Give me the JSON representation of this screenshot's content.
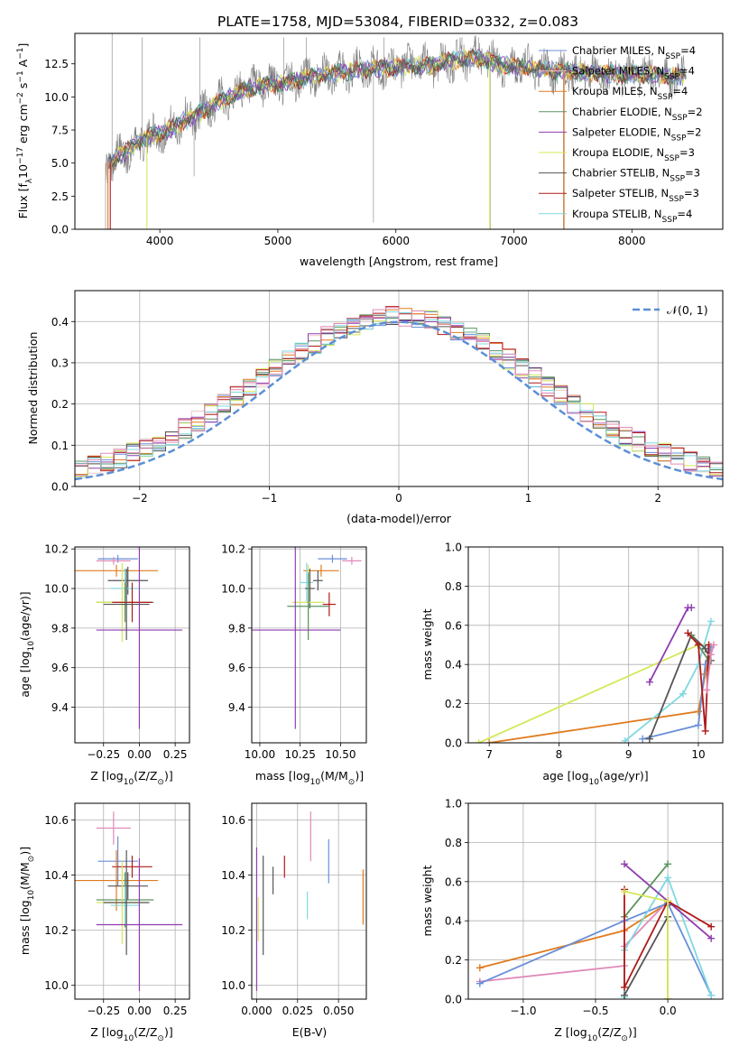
{
  "figure": {
    "title": "PLATE=1758, MJD=53084, FIBERID=0332, z=0.083",
    "colors": {
      "chabrier_miles": "#6a8fd8",
      "salpeter_miles": "#e8c8c8",
      "kroupa_miles": "#e07b1f",
      "chabrier_elodie": "#5a9460",
      "salpeter_elodie": "#8f3db0",
      "kroupa_elodie": "#d4e85a",
      "chabrier_stelib": "#555555",
      "salpeter_stelib": "#b01818",
      "kroupa_stelib": "#7fd8e0",
      "pink": "#e08ab8",
      "data": "#808080",
      "gaussian": "#5b8fd6"
    }
  },
  "chart_data": [
    {
      "id": "spectrum",
      "type": "line",
      "ylabel_main": "Flux [f",
      "ylabel_sub": "λ",
      "ylabel_rest": "10",
      "ylabel_exp1": "−17",
      "ylabel_mid": " erg cm",
      "ylabel_exp2": "−2",
      "ylabel_mid2": " s",
      "ylabel_exp3": "−1",
      "ylabel_end": " A",
      "ylabel_exp4": "−1",
      "ylabel_close": "]",
      "xlabel": "wavelength [Angstrom, rest frame]",
      "xlim": [
        3280,
        8770
      ],
      "ylim": [
        0,
        14.8
      ],
      "xticks": [
        4000,
        5000,
        6000,
        7000,
        8000
      ],
      "xtick_labels": [
        "4000",
        "5000",
        "6000",
        "7000",
        "8000"
      ],
      "yticks": [
        0,
        2.5,
        5.0,
        7.5,
        10.0,
        12.5
      ],
      "ytick_labels": [
        "0.0",
        "2.5",
        "5.0",
        "7.5",
        "10.0",
        "12.5"
      ],
      "continuum": {
        "x": [
          3560,
          3700,
          3850,
          4000,
          4100,
          4200,
          4300,
          4500,
          4700,
          4900,
          5100,
          5300,
          5500,
          5700,
          5900,
          6100,
          6300,
          6500,
          6700,
          6900,
          7100,
          7300,
          7500,
          7700,
          7900,
          8100,
          8300,
          8450
        ],
        "y": [
          5.0,
          5.8,
          6.8,
          7.2,
          7.6,
          8.2,
          8.6,
          9.6,
          10.5,
          10.9,
          11.1,
          11.6,
          11.8,
          12.0,
          12.2,
          12.3,
          12.4,
          12.8,
          12.9,
          12.4,
          12.2,
          12.0,
          11.9,
          11.8,
          11.7,
          11.7,
          11.6,
          11.5
        ]
      },
      "legend": [
        {
          "name": "Chabrier MILES, N",
          "sub": "SSP",
          "val": "=4",
          "color": "#6a8fd8"
        },
        {
          "name": "Salpeter MILES, N",
          "sub": "SSP",
          "val": "=4",
          "color": "#e8c8c8"
        },
        {
          "name": "Kroupa MILES, N",
          "sub": "SSP",
          "val": "=4",
          "color": "#e07b1f"
        },
        {
          "name": "Chabrier ELODIE, N",
          "sub": "SSP",
          "val": "=2",
          "color": "#5a9460"
        },
        {
          "name": "Salpeter ELODIE, N",
          "sub": "SSP",
          "val": "=2",
          "color": "#8f3db0"
        },
        {
          "name": "Kroupa ELODIE, N",
          "sub": "SSP",
          "val": "=3",
          "color": "#d4e85a"
        },
        {
          "name": "Chabrier STELIB, N",
          "sub": "SSP",
          "val": "=3",
          "color": "#555555"
        },
        {
          "name": "Salpeter STELIB, N",
          "sub": "SSP",
          "val": "=3",
          "color": "#b01818"
        },
        {
          "name": "Kroupa STELIB, N",
          "sub": "SSP",
          "val": "=4",
          "color": "#7fd8e0"
        }
      ],
      "legend_position": "right"
    },
    {
      "id": "residuals",
      "type": "histogram",
      "xlabel": "(data-model)/error",
      "ylabel": "Normed distribution",
      "xlim": [
        -2.5,
        2.5
      ],
      "ylim": [
        0,
        0.475
      ],
      "xticks": [
        -2,
        -1,
        0,
        1,
        2
      ],
      "xtick_labels": [
        "−2",
        "−1",
        "0",
        "1",
        "2"
      ],
      "yticks": [
        0,
        0.1,
        0.2,
        0.3,
        0.4
      ],
      "ytick_labels": [
        "0.0",
        "0.1",
        "0.2",
        "0.3",
        "0.4"
      ],
      "grid": true,
      "legend_label": "𝒩(0, 1)",
      "legend_position": "top-right",
      "bin_width": 0.1
    },
    {
      "id": "age-vs-metallicity",
      "type": "errorbar",
      "xlabel": "Z [log",
      "xlabel_sub": "10",
      "xlabel_end": "(Z/Z",
      "xlabel_sub2": "⊙",
      "xlabel_close": ")]",
      "ylabel": "age  [log",
      "ylabel_sub": "10",
      "ylabel_end": "(age/yr)]",
      "xlim": [
        -0.45,
        0.35
      ],
      "ylim": [
        9.22,
        10.21
      ],
      "xticks": [
        -0.25,
        0.0,
        0.25
      ],
      "xtick_labels": [
        "−0.25",
        "0.00",
        "0.25"
      ],
      "yticks": [
        9.4,
        9.6,
        9.8,
        10.0,
        10.2
      ],
      "ytick_labels": [
        "9.4",
        "9.6",
        "9.8",
        "10.0",
        "10.2"
      ],
      "points": [
        {
          "x": -0.15,
          "y": 10.15,
          "xerr": 0.14,
          "yerr": 0.02,
          "color": "#6a8fd8"
        },
        {
          "x": -0.18,
          "y": 10.14,
          "xerr": 0.12,
          "yerr": 0.02,
          "color": "#e08ab8"
        },
        {
          "x": -0.16,
          "y": 10.09,
          "xerr": 0.29,
          "yerr": 0.03,
          "color": "#e07b1f"
        },
        {
          "x": -0.08,
          "y": 10.04,
          "xerr": 0.14,
          "yerr": 0.07,
          "color": "#555555"
        },
        {
          "x": -0.1,
          "y": 10.0,
          "xerr": 0.1,
          "yerr": 0.1,
          "color": "#7fd8e0"
        },
        {
          "x": -0.1,
          "y": 9.93,
          "xerr": 0.2,
          "yerr": 0.1,
          "color": "#5a9460"
        },
        {
          "x": -0.12,
          "y": 9.93,
          "xerr": 0.18,
          "yerr": 0.2,
          "color": "#d4e85a"
        },
        {
          "x": -0.05,
          "y": 9.93,
          "xerr": 0.14,
          "yerr": 0.1,
          "color": "#b01818"
        },
        {
          "x": -0.09,
          "y": 9.92,
          "xerr": 0.16,
          "yerr": 0.18,
          "color": "#555555"
        },
        {
          "x": -0.0,
          "y": 9.79,
          "xerr": 0.3,
          "yerr": 0.5,
          "color": "#8f3db0"
        }
      ]
    },
    {
      "id": "age-vs-mass",
      "type": "errorbar",
      "xlabel": "mass [log",
      "xlabel_sub": "10",
      "xlabel_end": "(M/M",
      "xlabel_sub2": "⊙",
      "xlabel_close": ")]",
      "xlim": [
        9.95,
        10.66
      ],
      "ylim": [
        9.22,
        10.21
      ],
      "xticks": [
        10.0,
        10.25,
        10.5
      ],
      "xtick_labels": [
        "10.00",
        "10.25",
        "10.50"
      ],
      "yticks": [
        9.4,
        9.6,
        9.8,
        10.0,
        10.2
      ],
      "ytick_labels": [
        "9.4",
        "9.6",
        "9.8",
        "10.0",
        "10.2"
      ],
      "points": [
        {
          "x": 10.45,
          "y": 10.15,
          "xerr": 0.09,
          "yerr": 0.02,
          "color": "#6a8fd8"
        },
        {
          "x": 10.57,
          "y": 10.14,
          "xerr": 0.06,
          "yerr": 0.02,
          "color": "#e08ab8"
        },
        {
          "x": 10.38,
          "y": 10.09,
          "xerr": 0.11,
          "yerr": 0.03,
          "color": "#e07b1f"
        },
        {
          "x": 10.36,
          "y": 10.04,
          "xerr": 0.03,
          "yerr": 0.05,
          "color": "#555555"
        },
        {
          "x": 10.29,
          "y": 10.03,
          "xerr": 0.04,
          "yerr": 0.1,
          "color": "#7fd8e0"
        },
        {
          "x": 10.31,
          "y": 10.0,
          "xerr": 0.03,
          "yerr": 0.1,
          "color": "#555555"
        },
        {
          "x": 10.3,
          "y": 9.93,
          "xerr": 0.1,
          "yerr": 0.19,
          "color": "#d4e85a"
        },
        {
          "x": 10.43,
          "y": 9.92,
          "xerr": 0.04,
          "yerr": 0.06,
          "color": "#b01818"
        },
        {
          "x": 10.3,
          "y": 9.91,
          "xerr": 0.13,
          "yerr": 0.17,
          "color": "#5a9460"
        },
        {
          "x": 10.22,
          "y": 9.79,
          "xerr": 0.28,
          "yerr": 0.5,
          "color": "#8f3db0"
        }
      ]
    },
    {
      "id": "mass-weight-vs-age",
      "type": "line",
      "xlabel": "age  [log",
      "xlabel_sub": "10",
      "xlabel_end": "(age/yr)]",
      "ylabel": "mass weight",
      "xlim": [
        6.7,
        10.35
      ],
      "ylim": [
        0,
        1.0
      ],
      "xticks": [
        7,
        8,
        9,
        10
      ],
      "xtick_labels": [
        "7",
        "8",
        "9",
        "10"
      ],
      "yticks": [
        0,
        0.2,
        0.4,
        0.6,
        0.8,
        1.0
      ],
      "ytick_labels": [
        "0.0",
        "0.2",
        "0.4",
        "0.6",
        "0.8",
        "1.0"
      ],
      "series": [
        {
          "color": "#d4e85a",
          "x": [
            6.85,
            10.0,
            10.15
          ],
          "y": [
            0.0,
            0.5,
            0.5
          ]
        },
        {
          "color": "#e07b1f",
          "x": [
            7.0,
            10.0,
            10.1,
            10.18
          ],
          "y": [
            0.0,
            0.16,
            0.35,
            0.49
          ]
        },
        {
          "color": "#7fd8e0",
          "x": [
            8.95,
            9.78,
            10.0,
            10.18
          ],
          "y": [
            0.01,
            0.25,
            0.4,
            0.62
          ]
        },
        {
          "color": "#6a8fd8",
          "x": [
            9.2,
            10.0,
            10.1,
            10.18
          ],
          "y": [
            0.02,
            0.09,
            0.4,
            0.49
          ]
        },
        {
          "color": "#555555",
          "x": [
            9.3,
            9.9,
            10.1,
            10.18
          ],
          "y": [
            0.02,
            0.55,
            0.48,
            0.42
          ]
        },
        {
          "color": "#8f3db0",
          "x": [
            9.3,
            9.85,
            9.9
          ],
          "y": [
            0.31,
            0.69,
            0.69
          ]
        },
        {
          "color": "#5a9460",
          "x": [
            9.9,
            10.15
          ],
          "y": [
            0.55,
            0.42
          ]
        },
        {
          "color": "#b01818",
          "x": [
            9.85,
            10.0,
            10.1,
            10.15
          ],
          "y": [
            0.56,
            0.5,
            0.06,
            0.5
          ]
        },
        {
          "color": "#e08ab8",
          "x": [
            10.12,
            10.18,
            10.22
          ],
          "y": [
            0.27,
            0.45,
            0.5
          ]
        }
      ]
    },
    {
      "id": "mass-vs-metallicity",
      "type": "errorbar",
      "xlabel": "Z [log",
      "xlabel_sub": "10",
      "xlabel_end": "(Z/Z",
      "xlabel_sub2": "⊙",
      "xlabel_close": ")]",
      "ylabel": "mass [log",
      "ylabel_sub": "10",
      "ylabel_end": "(M/M",
      "ylabel_sub2": "⊙",
      "ylabel_close": ")]",
      "xlim": [
        -0.45,
        0.35
      ],
      "ylim": [
        9.95,
        10.66
      ],
      "xticks": [
        -0.25,
        0.0,
        0.25
      ],
      "xtick_labels": [
        "−0.25",
        "0.00",
        "0.25"
      ],
      "yticks": [
        10.0,
        10.2,
        10.4,
        10.6
      ],
      "ytick_labels": [
        "10.0",
        "10.2",
        "10.4",
        "10.6"
      ],
      "points": [
        {
          "x": -0.18,
          "y": 10.57,
          "xerr": 0.12,
          "yerr": 0.06,
          "color": "#e08ab8"
        },
        {
          "x": -0.15,
          "y": 10.45,
          "xerr": 0.14,
          "yerr": 0.09,
          "color": "#6a8fd8"
        },
        {
          "x": -0.05,
          "y": 10.43,
          "xerr": 0.14,
          "yerr": 0.04,
          "color": "#b01818"
        },
        {
          "x": -0.16,
          "y": 10.38,
          "xerr": 0.29,
          "yerr": 0.11,
          "color": "#e07b1f"
        },
        {
          "x": -0.08,
          "y": 10.36,
          "xerr": 0.14,
          "yerr": 0.05,
          "color": "#555555"
        },
        {
          "x": -0.1,
          "y": 10.31,
          "xerr": 0.2,
          "yerr": 0.1,
          "color": "#5a9460"
        },
        {
          "x": -0.1,
          "y": 10.29,
          "xerr": 0.1,
          "yerr": 0.07,
          "color": "#7fd8e0"
        },
        {
          "x": -0.12,
          "y": 10.3,
          "xerr": 0.18,
          "yerr": 0.15,
          "color": "#d4e85a"
        },
        {
          "x": -0.09,
          "y": 10.3,
          "xerr": 0.16,
          "yerr": 0.19,
          "color": "#555555"
        },
        {
          "x": -0.0,
          "y": 10.22,
          "xerr": 0.3,
          "yerr": 0.24,
          "color": "#8f3db0"
        }
      ]
    },
    {
      "id": "mass-vs-extinction",
      "type": "errorbar",
      "xlabel": "E(B-V)",
      "xlim": [
        -0.003,
        0.067
      ],
      "ylim": [
        9.95,
        10.66
      ],
      "xticks": [
        0.0,
        0.025,
        0.05
      ],
      "xtick_labels": [
        "0.000",
        "0.025",
        "0.050"
      ],
      "yticks": [
        10.0,
        10.2,
        10.4,
        10.6
      ],
      "ytick_labels": [
        "10.0",
        "10.2",
        "10.4",
        "10.6"
      ],
      "points": [
        {
          "x": 0.0,
          "y": 10.24,
          "yerr": 0.26,
          "color": "#8f3db0"
        },
        {
          "x": 0.001,
          "y": 10.24,
          "yerr": 0.08,
          "color": "#d4e85a"
        },
        {
          "x": 0.004,
          "y": 10.29,
          "yerr": 0.18,
          "color": "#555555"
        },
        {
          "x": 0.01,
          "y": 10.38,
          "yerr": 0.05,
          "color": "#555555"
        },
        {
          "x": 0.017,
          "y": 10.43,
          "yerr": 0.04,
          "color": "#b01818"
        },
        {
          "x": 0.031,
          "y": 10.29,
          "yerr": 0.05,
          "color": "#7fd8e0"
        },
        {
          "x": 0.033,
          "y": 10.54,
          "yerr": 0.09,
          "color": "#e08ab8"
        },
        {
          "x": 0.044,
          "y": 10.45,
          "yerr": 0.08,
          "color": "#6a8fd8"
        },
        {
          "x": 0.065,
          "y": 10.32,
          "yerr": 0.1,
          "color": "#e07b1f"
        }
      ]
    },
    {
      "id": "mass-weight-vs-metallicity",
      "type": "line",
      "xlabel": "Z [log",
      "xlabel_sub": "10",
      "xlabel_end": "(Z/Z",
      "xlabel_sub2": "⊙",
      "xlabel_close": ")]",
      "ylabel": "mass weight",
      "xlim": [
        -1.38,
        0.38
      ],
      "ylim": [
        0,
        1.0
      ],
      "xticks": [
        -1.0,
        -0.5,
        0.0
      ],
      "xtick_labels": [
        "−1.0",
        "−0.5",
        "0.0"
      ],
      "yticks": [
        0,
        0.2,
        0.4,
        0.6,
        0.8,
        1.0
      ],
      "ytick_labels": [
        "0.0",
        "0.2",
        "0.4",
        "0.6",
        "0.8",
        "1.0"
      ],
      "series": [
        {
          "color": "#e07b1f",
          "x": [
            -1.3,
            -0.3,
            0.0,
            0.0
          ],
          "y": [
            0.16,
            0.35,
            0.49,
            0.0
          ]
        },
        {
          "color": "#e08ab8",
          "x": [
            -1.3,
            -0.3,
            -0.3,
            0.0
          ],
          "y": [
            0.09,
            0.17,
            0.27,
            0.5
          ]
        },
        {
          "color": "#6a8fd8",
          "x": [
            -1.3,
            -0.3,
            0.0,
            0.3
          ],
          "y": [
            0.08,
            0.4,
            0.49,
            0.02
          ]
        },
        {
          "color": "#7fd8e0",
          "x": [
            -0.3,
            -0.3,
            0.0,
            0.3
          ],
          "y": [
            0.01,
            0.25,
            0.62,
            0.02
          ]
        },
        {
          "color": "#555555",
          "x": [
            -0.3,
            0.0,
            0.0
          ],
          "y": [
            0.02,
            0.42,
            0.48
          ]
        },
        {
          "color": "#8f3db0",
          "x": [
            -0.3,
            0.3
          ],
          "y": [
            0.69,
            0.31
          ]
        },
        {
          "color": "#5a9460",
          "x": [
            -0.3,
            0.0
          ],
          "y": [
            0.42,
            0.69
          ]
        },
        {
          "color": "#b01818",
          "x": [
            -0.3,
            -0.3,
            0.0,
            0.3
          ],
          "y": [
            0.56,
            0.06,
            0.5,
            0.37
          ]
        },
        {
          "color": "#d4e85a",
          "x": [
            -0.3,
            0.0,
            0.0
          ],
          "y": [
            0.55,
            0.5,
            0.0
          ]
        }
      ]
    }
  ]
}
